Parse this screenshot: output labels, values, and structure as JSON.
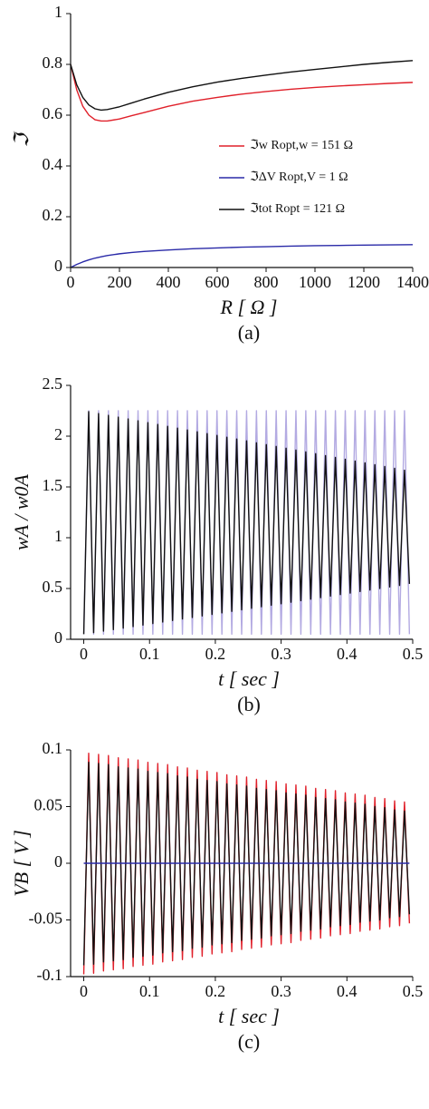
{
  "chart_data": [
    {
      "type": "line",
      "caption": "(a)",
      "xlabel": "R [ Ω ]",
      "ylabel": "ℑ",
      "xlim": [
        0,
        1400
      ],
      "ylim": [
        0,
        1
      ],
      "xticks": [
        0,
        200,
        400,
        600,
        800,
        1000,
        1200,
        1400
      ],
      "yticks": [
        0,
        0.2,
        0.4,
        0.6,
        0.8,
        1
      ],
      "legend": "center-right",
      "x": [
        0,
        25,
        50,
        75,
        100,
        125,
        150,
        200,
        250,
        300,
        400,
        500,
        600,
        700,
        800,
        900,
        1000,
        1100,
        1200,
        1300,
        1400
      ],
      "series": [
        {
          "name": "ℑw  Ropt,w = 151 Ω",
          "color": "#e0202a",
          "values": [
            0.8,
            0.7,
            0.635,
            0.6,
            0.582,
            0.577,
            0.577,
            0.585,
            0.598,
            0.61,
            0.635,
            0.655,
            0.67,
            0.683,
            0.693,
            0.702,
            0.709,
            0.715,
            0.72,
            0.725,
            0.729
          ]
        },
        {
          "name": "ℑΔV  Ropt,V = 1 Ω",
          "color": "#2a2aa8",
          "values": [
            0,
            0.012,
            0.022,
            0.03,
            0.037,
            0.042,
            0.047,
            0.054,
            0.059,
            0.063,
            0.069,
            0.074,
            0.077,
            0.08,
            0.082,
            0.084,
            0.086,
            0.087,
            0.088,
            0.089,
            0.09
          ]
        },
        {
          "name": "ℑtot  Ropt = 121 Ω",
          "color": "#111111",
          "values": [
            0.8,
            0.72,
            0.67,
            0.64,
            0.625,
            0.62,
            0.622,
            0.633,
            0.648,
            0.663,
            0.69,
            0.712,
            0.73,
            0.745,
            0.758,
            0.77,
            0.78,
            0.79,
            0.8,
            0.808,
            0.815
          ]
        }
      ]
    },
    {
      "type": "line",
      "caption": "(b)",
      "xlabel": "t [ sec ]",
      "ylabel": "wA / w0A",
      "xlim": [
        -0.02,
        0.5
      ],
      "ylim": [
        0,
        2.5
      ],
      "xticks": [
        0,
        0.1,
        0.2,
        0.3,
        0.4,
        0.5
      ],
      "yticks": [
        0,
        0.5,
        1,
        1.5,
        2,
        2.5
      ],
      "x": [
        0,
        0.0075,
        0.015,
        0.0225,
        0.03,
        0.0375,
        0.045,
        0.0525,
        0.06,
        0.0675,
        0.075,
        0.0825,
        0.09,
        0.0975,
        0.105,
        0.1125,
        0.12,
        0.1275,
        0.135,
        0.1425,
        0.15,
        0.1575,
        0.165,
        0.1725,
        0.18,
        0.1875,
        0.195,
        0.2025,
        0.21,
        0.2175,
        0.225,
        0.2325,
        0.24,
        0.2475,
        0.255,
        0.2625,
        0.27,
        0.2775,
        0.285,
        0.2925,
        0.3,
        0.3075,
        0.315,
        0.3225,
        0.33,
        0.3375,
        0.345,
        0.3525,
        0.36,
        0.3675,
        0.375,
        0.3825,
        0.39,
        0.3975,
        0.405,
        0.4125,
        0.42,
        0.4275,
        0.435,
        0.4425,
        0.45,
        0.4575,
        0.465,
        0.4725,
        0.48,
        0.4875,
        0.495
      ],
      "series": [
        {
          "color": "#b3aae2",
          "values": [
            0.05,
            2.25,
            0.05,
            2.25,
            0.05,
            2.25,
            0.05,
            2.25,
            0.05,
            2.25,
            0.05,
            2.25,
            0.05,
            2.25,
            0.05,
            2.25,
            0.05,
            2.25,
            0.05,
            2.25,
            0.05,
            2.25,
            0.05,
            2.25,
            0.05,
            2.25,
            0.05,
            2.25,
            0.05,
            2.25,
            0.05,
            2.25,
            0.05,
            2.25,
            0.05,
            2.25,
            0.05,
            2.25,
            0.05,
            2.25,
            0.05,
            2.25,
            0.05,
            2.25,
            0.05,
            2.25,
            0.05,
            2.25,
            0.05,
            2.25,
            0.05,
            2.25,
            0.05,
            2.25,
            0.05,
            2.25,
            0.05,
            2.25,
            0.05,
            2.25,
            0.05,
            2.25,
            0.05,
            2.25,
            0.05,
            2.25,
            0.05
          ]
        },
        {
          "color": "#111111",
          "values": [
            0.05,
            2.241,
            0.065,
            2.223,
            0.08,
            2.205,
            0.095,
            2.187,
            0.11,
            2.169,
            0.125,
            2.151,
            0.14,
            2.133,
            0.155,
            2.115,
            0.17,
            2.097,
            0.185,
            2.079,
            0.2,
            2.061,
            0.215,
            2.043,
            0.23,
            2.025,
            0.245,
            2.007,
            0.26,
            1.989,
            0.275,
            1.971,
            0.29,
            1.953,
            0.305,
            1.935,
            0.32,
            1.917,
            0.335,
            1.899,
            0.35,
            1.881,
            0.365,
            1.863,
            0.38,
            1.845,
            0.395,
            1.827,
            0.41,
            1.809,
            0.425,
            1.791,
            0.44,
            1.773,
            0.455,
            1.755,
            0.47,
            1.737,
            0.485,
            1.719,
            0.5,
            1.701,
            0.515,
            1.683,
            0.53,
            1.665,
            0.545
          ]
        }
      ]
    },
    {
      "type": "line",
      "caption": "(c)",
      "xlabel": "t [ sec ]",
      "ylabel": "VB [ V ]",
      "xlim": [
        -0.02,
        0.5
      ],
      "ylim": [
        -0.1,
        0.1
      ],
      "xticks": [
        0,
        0.1,
        0.2,
        0.3,
        0.4,
        0.5
      ],
      "yticks": [
        -0.1,
        -0.05,
        0,
        0.05,
        0.1
      ],
      "x": [
        0,
        0.0075,
        0.015,
        0.0225,
        0.03,
        0.0375,
        0.045,
        0.0525,
        0.06,
        0.0675,
        0.075,
        0.0825,
        0.09,
        0.0975,
        0.105,
        0.1125,
        0.12,
        0.1275,
        0.135,
        0.1425,
        0.15,
        0.1575,
        0.165,
        0.1725,
        0.18,
        0.1875,
        0.195,
        0.2025,
        0.21,
        0.2175,
        0.225,
        0.2325,
        0.24,
        0.2475,
        0.255,
        0.2625,
        0.27,
        0.2775,
        0.285,
        0.2925,
        0.3,
        0.3075,
        0.315,
        0.3225,
        0.33,
        0.3375,
        0.345,
        0.3525,
        0.36,
        0.3675,
        0.375,
        0.3825,
        0.39,
        0.3975,
        0.405,
        0.4125,
        0.42,
        0.4275,
        0.435,
        0.4425,
        0.45,
        0.4575,
        0.465,
        0.4725,
        0.48,
        0.4875,
        0.495
      ],
      "series": [
        {
          "color": "#e0202a",
          "values": [
            -0.098,
            0.097,
            -0.097,
            0.096,
            -0.095,
            0.095,
            -0.094,
            0.093,
            -0.093,
            0.092,
            -0.091,
            0.091,
            -0.09,
            0.089,
            -0.089,
            0.088,
            -0.087,
            0.087,
            -0.086,
            0.085,
            -0.085,
            0.084,
            -0.083,
            0.082,
            -0.082,
            0.081,
            -0.08,
            0.08,
            -0.079,
            0.078,
            -0.078,
            0.077,
            -0.076,
            0.076,
            -0.075,
            0.074,
            -0.074,
            0.073,
            -0.072,
            0.072,
            -0.071,
            0.07,
            -0.07,
            0.069,
            -0.068,
            0.068,
            -0.067,
            0.066,
            -0.066,
            0.065,
            -0.064,
            0.064,
            -0.063,
            0.062,
            -0.062,
            0.061,
            -0.06,
            0.06,
            -0.059,
            0.058,
            -0.058,
            0.057,
            -0.056,
            0.055,
            -0.055,
            0.054,
            -0.053
          ]
        },
        {
          "color": "#111111",
          "values": [
            -0.09,
            0.089,
            -0.089,
            0.088,
            -0.087,
            0.087,
            -0.086,
            0.085,
            -0.085,
            0.084,
            -0.083,
            0.083,
            -0.082,
            0.081,
            -0.081,
            0.08,
            -0.079,
            0.079,
            -0.078,
            0.077,
            -0.077,
            0.076,
            -0.075,
            0.074,
            -0.074,
            0.073,
            -0.072,
            0.072,
            -0.071,
            0.07,
            -0.07,
            0.069,
            -0.068,
            0.068,
            -0.067,
            0.066,
            -0.066,
            0.065,
            -0.064,
            0.064,
            -0.063,
            0.062,
            -0.062,
            0.061,
            -0.06,
            0.06,
            -0.059,
            0.058,
            -0.058,
            0.057,
            -0.056,
            0.056,
            -0.055,
            0.054,
            -0.054,
            0.053,
            -0.052,
            0.052,
            -0.051,
            0.05,
            -0.05,
            0.049,
            -0.048,
            0.047,
            -0.047,
            0.046,
            -0.045
          ]
        },
        {
          "color": "#2a2aa8",
          "values": [
            0,
            0,
            0,
            0,
            0,
            0,
            0,
            0,
            0,
            0,
            0,
            0,
            0,
            0,
            0,
            0,
            0,
            0,
            0,
            0,
            0,
            0,
            0,
            0,
            0,
            0,
            0,
            0,
            0,
            0,
            0,
            0,
            0,
            0,
            0,
            0,
            0,
            0,
            0,
            0,
            0,
            0,
            0,
            0,
            0,
            0,
            0,
            0,
            0,
            0,
            0,
            0,
            0,
            0,
            0,
            0,
            0,
            0,
            0,
            0,
            0,
            0,
            0,
            0,
            0,
            0,
            0
          ]
        }
      ]
    }
  ]
}
